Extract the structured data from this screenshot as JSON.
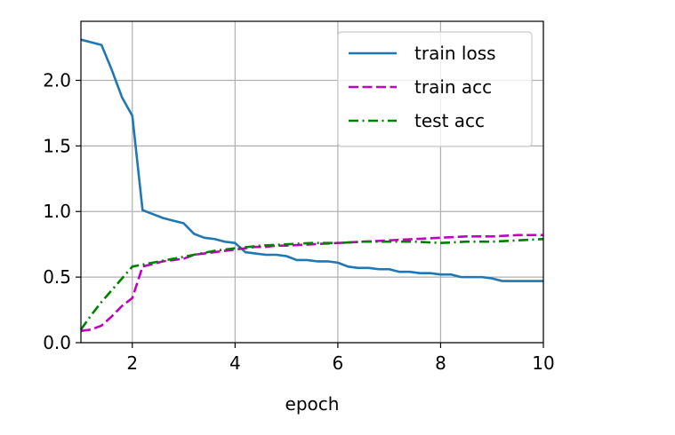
{
  "chart_data": {
    "type": "line",
    "title": "",
    "xlabel": "epoch",
    "ylabel": "",
    "xlim": [
      1,
      10
    ],
    "ylim": [
      0,
      2.45
    ],
    "grid": true,
    "legend_position": "top-right",
    "xticks": [
      2,
      4,
      6,
      8,
      10
    ],
    "xtick_labels": [
      "2",
      "4",
      "6",
      "8",
      "10"
    ],
    "yticks": [
      0.0,
      0.5,
      1.0,
      1.5,
      2.0
    ],
    "ytick_labels": [
      "0.0",
      "0.5",
      "1.0",
      "1.5",
      "2.0"
    ],
    "series": [
      {
        "name": "train loss",
        "color": "#1f77b4",
        "style": "solid",
        "x": [
          1.0,
          1.4,
          1.6,
          1.8,
          2.0,
          2.2,
          2.4,
          2.6,
          2.8,
          3.0,
          3.2,
          3.4,
          3.6,
          3.8,
          4.0,
          4.2,
          4.4,
          4.6,
          4.8,
          5.0,
          5.2,
          5.4,
          5.6,
          5.8,
          6.0,
          6.2,
          6.4,
          6.6,
          6.8,
          7.0,
          7.2,
          7.4,
          7.6,
          7.8,
          8.0,
          8.2,
          8.4,
          8.6,
          8.8,
          9.0,
          9.2,
          9.4,
          9.6,
          9.8,
          10.0
        ],
        "y": [
          2.31,
          2.27,
          2.08,
          1.87,
          1.73,
          1.01,
          0.98,
          0.95,
          0.93,
          0.91,
          0.83,
          0.8,
          0.79,
          0.77,
          0.76,
          0.69,
          0.68,
          0.67,
          0.67,
          0.66,
          0.63,
          0.63,
          0.62,
          0.62,
          0.61,
          0.58,
          0.57,
          0.57,
          0.56,
          0.56,
          0.54,
          0.54,
          0.53,
          0.53,
          0.52,
          0.52,
          0.5,
          0.5,
          0.5,
          0.49,
          0.47,
          0.47,
          0.47,
          0.47,
          0.47
        ]
      },
      {
        "name": "train acc",
        "color": "#bf00bf",
        "style": "dashed",
        "x": [
          1.0,
          1.2,
          1.4,
          1.6,
          1.8,
          2.0,
          2.2,
          2.4,
          2.6,
          2.8,
          3.0,
          3.2,
          3.4,
          3.6,
          3.8,
          4.0,
          4.2,
          4.4,
          4.6,
          4.8,
          5.0,
          5.5,
          6.0,
          6.5,
          7.0,
          7.5,
          8.0,
          8.5,
          9.0,
          9.5,
          10.0
        ],
        "y": [
          0.09,
          0.1,
          0.13,
          0.2,
          0.28,
          0.34,
          0.58,
          0.6,
          0.62,
          0.63,
          0.64,
          0.67,
          0.68,
          0.69,
          0.7,
          0.71,
          0.72,
          0.73,
          0.73,
          0.74,
          0.74,
          0.75,
          0.76,
          0.77,
          0.78,
          0.79,
          0.8,
          0.81,
          0.81,
          0.82,
          0.82
        ]
      },
      {
        "name": "test acc",
        "color": "#008000",
        "style": "dashdot",
        "x": [
          1.0,
          1.2,
          1.4,
          1.6,
          1.8,
          2.0,
          2.4,
          2.8,
          3.2,
          3.6,
          4.0,
          4.5,
          5.0,
          5.5,
          6.0,
          6.5,
          7.0,
          7.5,
          8.0,
          8.5,
          9.0,
          9.5,
          10.0
        ],
        "y": [
          0.1,
          0.21,
          0.31,
          0.4,
          0.49,
          0.58,
          0.61,
          0.64,
          0.67,
          0.7,
          0.72,
          0.74,
          0.75,
          0.76,
          0.76,
          0.77,
          0.77,
          0.77,
          0.76,
          0.77,
          0.77,
          0.78,
          0.79
        ]
      }
    ]
  }
}
